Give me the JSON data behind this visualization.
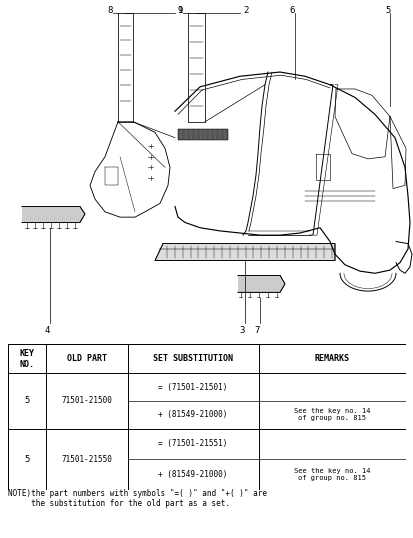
{
  "bg_color": "#ffffff",
  "fig_width": 4.14,
  "fig_height": 5.38,
  "dpi": 100,
  "table_headers": [
    "KEY\nNO.",
    "OLD PART",
    "SET SUBSTITUTION",
    "REMARKS"
  ],
  "row1_key": "5",
  "row1_old": "71501-21500",
  "row1_sub1": "= (71501-21501)",
  "row1_sub2": "+ (81549-21000)",
  "row1_rem": "See the key no. 14\nof group no. 815",
  "row2_key": "5",
  "row2_old": "71501-21550",
  "row2_sub1": "= (71501-21551)",
  "row2_sub2": "+ (81549-21000)",
  "row2_rem": "See the key no. 14\nof group no. 815",
  "note": "NOTE)the part numbers with symbols \"=( )\" and \"+( )\" are\n     the substitution for the old part as a set.",
  "lw": 0.7,
  "label_fs": 6.5,
  "table_fs": 6.5,
  "note_fs": 5.5
}
